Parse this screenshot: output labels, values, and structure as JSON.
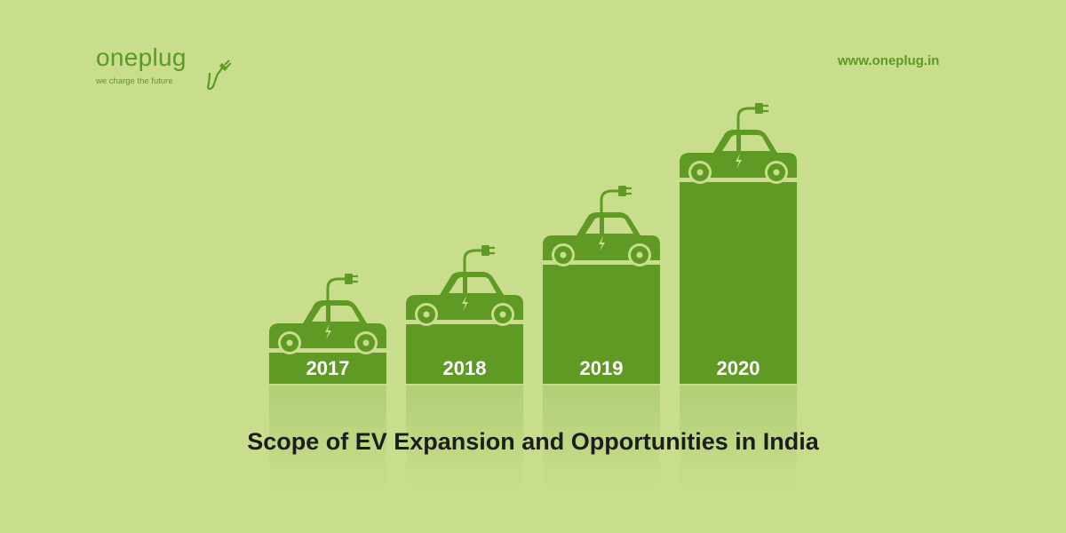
{
  "brand": {
    "name": "oneplug",
    "tagline": "we charge the future",
    "url": "www.oneplug.in"
  },
  "colors": {
    "background": "#c9de8d",
    "primary": "#5f9a24",
    "headline": "#1d1d1d"
  },
  "chart_data": {
    "type": "bar",
    "categories": [
      "2017",
      "2018",
      "2019",
      "2020"
    ],
    "title": "Scope of EV Expansion and Opportunities in India",
    "bar_icon": "electric-car-icon"
  }
}
